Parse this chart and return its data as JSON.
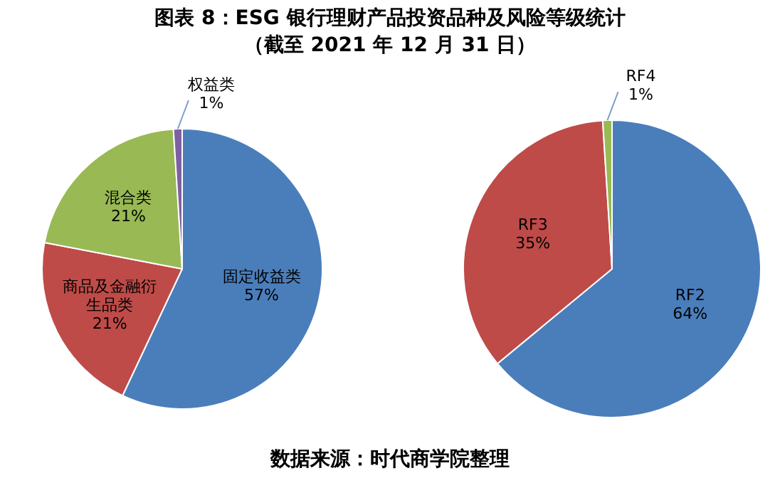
{
  "chart_data": [
    {
      "type": "pie",
      "title": "图表 8：ESG 银行理财产品投资品种及风险等级统计",
      "subtitle": "（截至 2021 年 12 月 31 日）",
      "annotations": [
        "数据来源：时代商学院整理"
      ],
      "categories": [
        "固定收益类",
        "商品及金融衍生品类",
        "混合类",
        "权益类"
      ],
      "values": [
        57,
        21,
        21,
        1
      ],
      "value_labels": [
        "57%",
        "21%",
        "21%",
        "1%"
      ],
      "colors": [
        "#4a7ebb",
        "#be4b48",
        "#98b954",
        "#7d60a0"
      ],
      "legend": false
    },
    {
      "type": "pie",
      "categories": [
        "RF2",
        "RF3",
        "RF4"
      ],
      "values": [
        64,
        35,
        1
      ],
      "value_labels": [
        "64%",
        "35%",
        "1%"
      ],
      "colors": [
        "#4a7ebb",
        "#be4b48",
        "#98b954"
      ],
      "legend": false
    }
  ]
}
